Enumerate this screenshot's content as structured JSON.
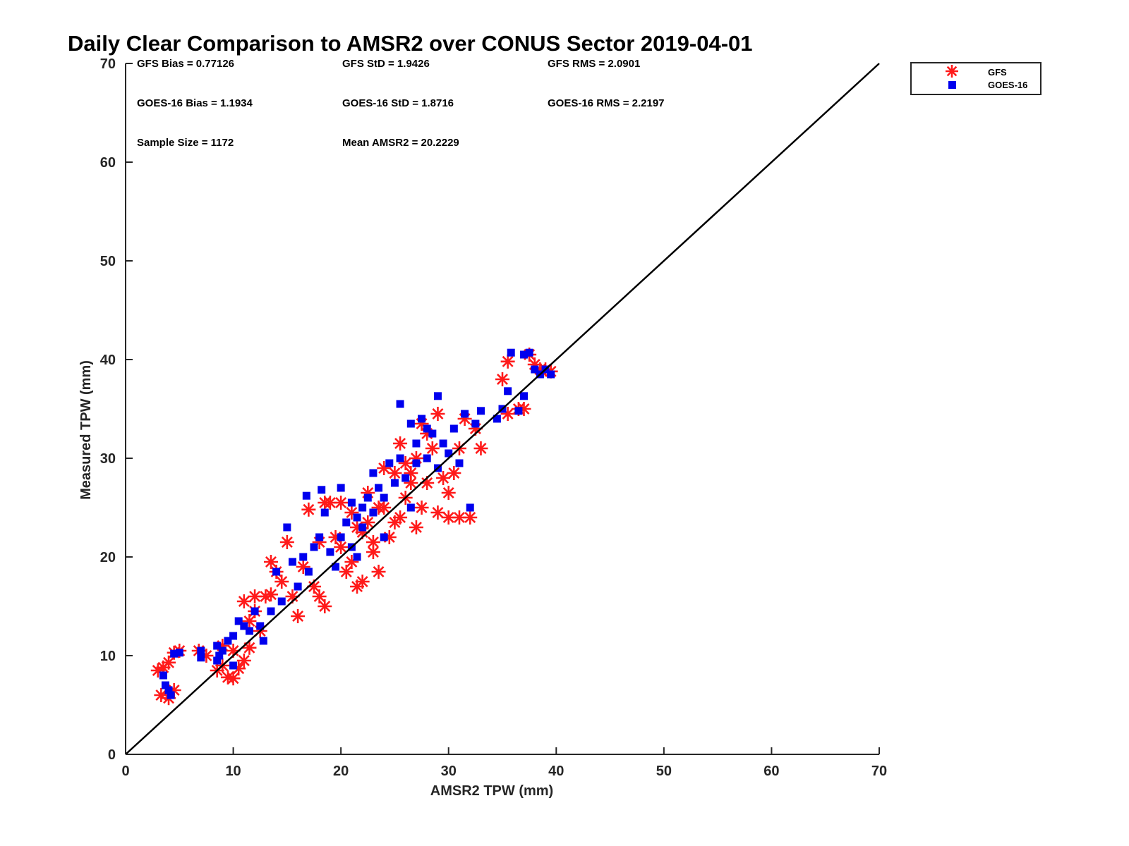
{
  "chart_data": {
    "type": "scatter",
    "title": "Daily Clear Comparison to AMSR2 over CONUS Sector 2019-04-01",
    "xlabel": "AMSR2 TPW (mm)",
    "ylabel": "Measured TPW (mm)",
    "xlim": [
      0,
      70
    ],
    "ylim": [
      0,
      70
    ],
    "xticks": [
      "0",
      "10",
      "20",
      "30",
      "40",
      "50",
      "60",
      "70"
    ],
    "yticks": [
      "0",
      "10",
      "20",
      "30",
      "40",
      "50",
      "60",
      "70"
    ],
    "grid": false,
    "legend_position": "outside top-right",
    "reference_line": {
      "x": [
        0,
        70
      ],
      "y": [
        0,
        70
      ],
      "color": "#000000"
    },
    "stats": [
      "GFS Bias = 0.77126",
      "GFS StD = 1.9426",
      "GFS RMS = 2.0901",
      "GOES-16 Bias = 1.1934",
      "GOES-16 StD = 1.8716",
      "GOES-16 RMS = 2.2197",
      "Sample Size = 1172",
      "Mean AMSR2 = 20.2229"
    ],
    "series": [
      {
        "name": "GFS",
        "marker": "asterisk",
        "color": "#ff1a1a",
        "points": [
          [
            3,
            8.5
          ],
          [
            3.5,
            8.8
          ],
          [
            4,
            9.3
          ],
          [
            3.3,
            6
          ],
          [
            4,
            5.7
          ],
          [
            4.5,
            6.5
          ],
          [
            4.5,
            10.3
          ],
          [
            5,
            10.5
          ],
          [
            6.8,
            10.5
          ],
          [
            7.5,
            10
          ],
          [
            8.5,
            8.5
          ],
          [
            9,
            9
          ],
          [
            9.5,
            7.8
          ],
          [
            10,
            7.7
          ],
          [
            10.5,
            8.7
          ],
          [
            9,
            11
          ],
          [
            10,
            10.5
          ],
          [
            11,
            9.5
          ],
          [
            11.5,
            10.8
          ],
          [
            12,
            14.5
          ],
          [
            12.5,
            12.5
          ],
          [
            11.5,
            13.5
          ],
          [
            11,
            15.5
          ],
          [
            12,
            16
          ],
          [
            13,
            16
          ],
          [
            13.5,
            16.2
          ],
          [
            13.5,
            19.5
          ],
          [
            14,
            18.5
          ],
          [
            14.5,
            17.5
          ],
          [
            15,
            21.5
          ],
          [
            15.5,
            16
          ],
          [
            16,
            14
          ],
          [
            16.5,
            19
          ],
          [
            17,
            24.8
          ],
          [
            17.5,
            17
          ],
          [
            18,
            16
          ],
          [
            18.5,
            15
          ],
          [
            18.5,
            25.5
          ],
          [
            19,
            25.5
          ],
          [
            19.5,
            22
          ],
          [
            20,
            25.5
          ],
          [
            20,
            21
          ],
          [
            20.5,
            18.5
          ],
          [
            21,
            19.5
          ],
          [
            21,
            24.5
          ],
          [
            21.5,
            23
          ],
          [
            21.5,
            17
          ],
          [
            22,
            17.5
          ],
          [
            22,
            22.5
          ],
          [
            22.5,
            23.5
          ],
          [
            22.5,
            26.5
          ],
          [
            23,
            20.5
          ],
          [
            23,
            21.5
          ],
          [
            23.5,
            18.5
          ],
          [
            23.5,
            25
          ],
          [
            24,
            25
          ],
          [
            24,
            29
          ],
          [
            24.5,
            22
          ],
          [
            25,
            28.5
          ],
          [
            25,
            23.5
          ],
          [
            25.5,
            24
          ],
          [
            25.5,
            31.5
          ],
          [
            26,
            26
          ],
          [
            26,
            29.5
          ],
          [
            26.5,
            27.5
          ],
          [
            27,
            23
          ],
          [
            27,
            30
          ],
          [
            27.5,
            25
          ],
          [
            27.5,
            33.5
          ],
          [
            28,
            27.5
          ],
          [
            28,
            32.5
          ],
          [
            28.5,
            31
          ],
          [
            29,
            34.5
          ],
          [
            29,
            24.5
          ],
          [
            29.5,
            28
          ],
          [
            30,
            26.5
          ],
          [
            30,
            24
          ],
          [
            30.5,
            28.5
          ],
          [
            31,
            31
          ],
          [
            31,
            24
          ],
          [
            31.5,
            34
          ],
          [
            32,
            24
          ],
          [
            32.5,
            33
          ],
          [
            33,
            31
          ],
          [
            35,
            38
          ],
          [
            35.5,
            39.8
          ],
          [
            35.5,
            34.5
          ],
          [
            36.5,
            35
          ],
          [
            37,
            35
          ],
          [
            37.5,
            40.5
          ],
          [
            38,
            39.5
          ],
          [
            38.5,
            39
          ],
          [
            39,
            39
          ],
          [
            39.5,
            38.8
          ],
          [
            26.5,
            28.5
          ],
          [
            18,
            21.5
          ]
        ]
      },
      {
        "name": "GOES-16",
        "marker": "square",
        "color": "#0000ee",
        "points": [
          [
            3.5,
            8
          ],
          [
            3.7,
            7
          ],
          [
            4,
            6.5
          ],
          [
            4.2,
            6
          ],
          [
            4.5,
            10.2
          ],
          [
            5,
            10.3
          ],
          [
            7,
            10.5
          ],
          [
            7,
            9.8
          ],
          [
            8.5,
            11
          ],
          [
            8.7,
            10
          ],
          [
            9.5,
            11.5
          ],
          [
            10,
            12
          ],
          [
            10,
            9
          ],
          [
            10.5,
            13.5
          ],
          [
            11,
            13
          ],
          [
            11.5,
            12.5
          ],
          [
            12,
            14.5
          ],
          [
            12.5,
            13
          ],
          [
            12.8,
            11.5
          ],
          [
            13.5,
            14.5
          ],
          [
            14,
            18.5
          ],
          [
            14.5,
            15.5
          ],
          [
            15,
            23
          ],
          [
            15.5,
            19.5
          ],
          [
            16,
            17
          ],
          [
            16.5,
            20
          ],
          [
            16.8,
            26.2
          ],
          [
            17,
            18.5
          ],
          [
            17.5,
            21
          ],
          [
            18,
            22
          ],
          [
            18.2,
            26.8
          ],
          [
            18.5,
            24.5
          ],
          [
            19,
            20.5
          ],
          [
            19.5,
            19
          ],
          [
            20,
            27
          ],
          [
            20,
            22
          ],
          [
            20.5,
            23.5
          ],
          [
            21,
            21
          ],
          [
            21,
            25.5
          ],
          [
            21.5,
            24
          ],
          [
            22,
            25
          ],
          [
            22,
            23
          ],
          [
            22.5,
            26
          ],
          [
            23,
            24.5
          ],
          [
            23,
            28.5
          ],
          [
            23.5,
            27
          ],
          [
            24,
            26
          ],
          [
            24,
            22
          ],
          [
            24.5,
            29.5
          ],
          [
            25,
            27.5
          ],
          [
            25.5,
            35.5
          ],
          [
            25.5,
            30
          ],
          [
            26,
            28
          ],
          [
            26.5,
            33.5
          ],
          [
            27,
            29.5
          ],
          [
            27,
            31.5
          ],
          [
            27.5,
            34
          ],
          [
            28,
            33
          ],
          [
            28,
            30
          ],
          [
            28.5,
            32.5
          ],
          [
            29,
            36.3
          ],
          [
            29,
            29
          ],
          [
            29.5,
            31.5
          ],
          [
            30,
            30.5
          ],
          [
            30.5,
            33
          ],
          [
            31,
            29.5
          ],
          [
            31.5,
            34.5
          ],
          [
            32,
            25
          ],
          [
            32.5,
            33.5
          ],
          [
            33,
            34.8
          ],
          [
            34.5,
            34
          ],
          [
            35,
            35
          ],
          [
            35.5,
            36.8
          ],
          [
            35.8,
            40.7
          ],
          [
            36.5,
            34.8
          ],
          [
            37,
            40.5
          ],
          [
            37,
            36.3
          ],
          [
            37.5,
            40.7
          ],
          [
            38,
            39
          ],
          [
            38.5,
            38.5
          ],
          [
            39,
            39
          ],
          [
            39.5,
            38.5
          ],
          [
            8.5,
            9.5
          ],
          [
            9,
            10.5
          ],
          [
            21.5,
            20
          ],
          [
            26.5,
            25
          ]
        ]
      }
    ]
  }
}
